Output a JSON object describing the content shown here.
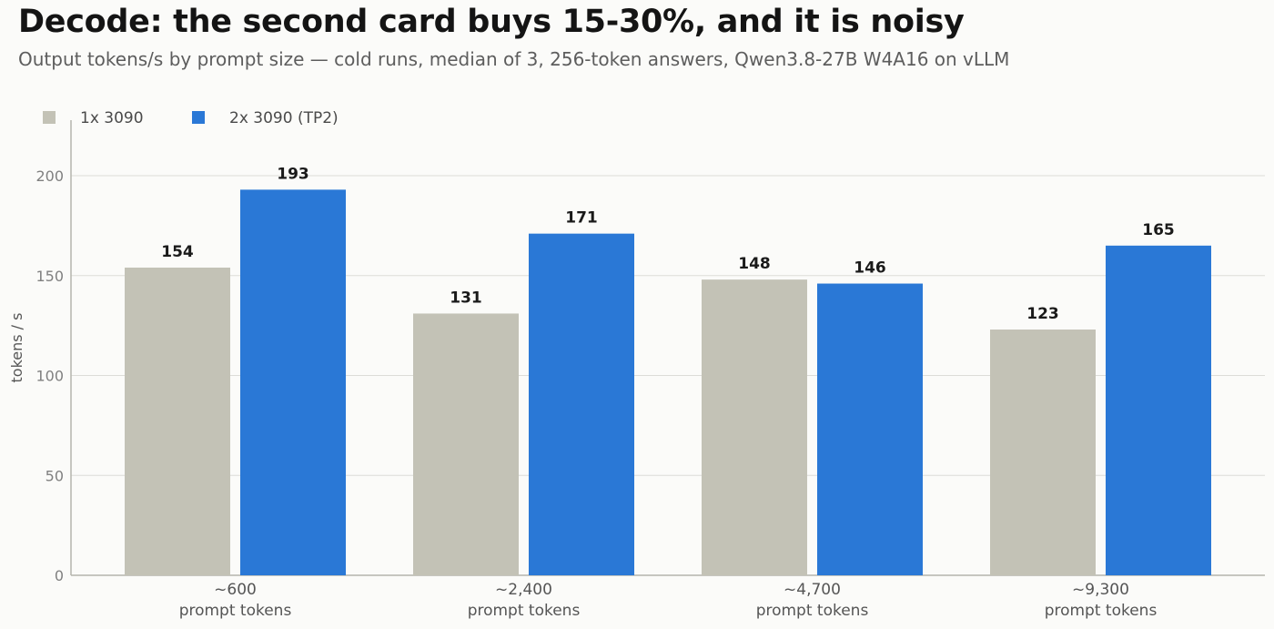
{
  "title": "Decode: the second card buys 15-30%, and it is noisy",
  "subtitle": "Output tokens/s by prompt size — cold runs, median of 3, 256-token answers, Qwen3.8-27B W4A16 on vLLM",
  "chart_data": {
    "type": "bar",
    "categories": [
      "~600",
      "~2,400",
      "~4,700",
      "~9,300"
    ],
    "category_sublabel": "prompt tokens",
    "series": [
      {
        "name": "1x 3090",
        "color": "#c3c2b6",
        "values": [
          154,
          131,
          148,
          123
        ]
      },
      {
        "name": "2x 3090 (TP2)",
        "color": "#2a78d6",
        "values": [
          193,
          171,
          146,
          165
        ]
      }
    ],
    "ylabel": "tokens / s",
    "ylim": [
      0,
      200
    ],
    "yticks": [
      0,
      50,
      100,
      150,
      200
    ],
    "grid": true,
    "legend_position": "top-left"
  }
}
